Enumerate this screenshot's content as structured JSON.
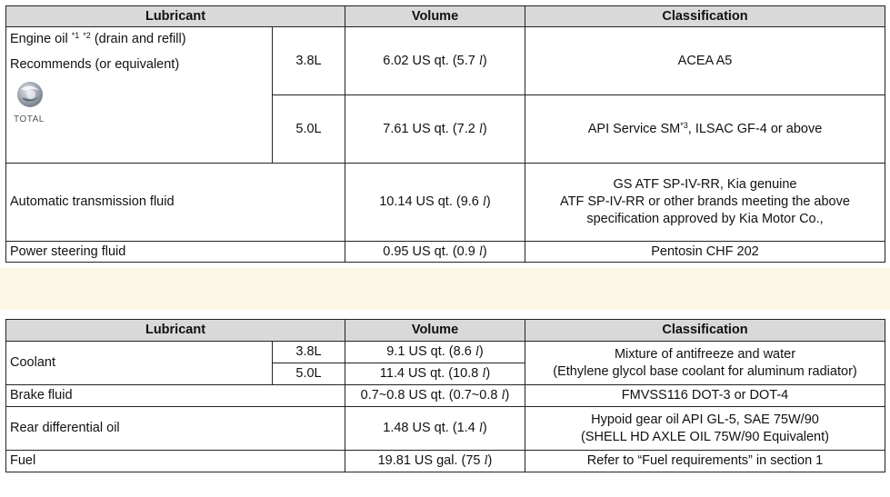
{
  "table1": {
    "headers": {
      "lubricant": "Lubricant",
      "volume": "Volume",
      "classification": "Classification"
    },
    "engine_oil": {
      "label": "Engine oil",
      "sup1": "*1",
      "sup2": "*2",
      "label_suffix": "(drain and refill)",
      "recommends": "Recommends (or equivalent)",
      "brand": "TOTAL",
      "rows": [
        {
          "engine": "3.8L",
          "volume_text": "6.02 US qt. (5.7",
          "classification": "ACEA A5"
        },
        {
          "engine": "5.0L",
          "volume_text": "7.61 US qt. (7.2",
          "classification_main": "API Service SM",
          "classification_sup": "*3",
          "classification_rest": ", ILSAC GF-4 or above"
        }
      ]
    },
    "atf": {
      "label": "Automatic transmission fluid",
      "volume_text": "10.14 US qt. (9.6",
      "classification_lines": [
        "GS ATF SP-IV-RR, Kia genuine",
        "ATF SP-IV-RR or other brands meeting the above",
        "specification approved by Kia Motor Co.,"
      ]
    },
    "power_steering": {
      "label": "Power steering fluid",
      "volume_text": "0.95 US qt. (0.9",
      "classification": "Pentosin CHF 202"
    }
  },
  "table2": {
    "headers": {
      "lubricant": "Lubricant",
      "volume": "Volume",
      "classification": "Classification"
    },
    "coolant": {
      "label": "Coolant",
      "rows": [
        {
          "engine": "3.8L",
          "volume_text": "9.1 US qt. (8.6"
        },
        {
          "engine": "5.0L",
          "volume_text": "11.4 US qt. (10.8"
        }
      ],
      "classification_lines": [
        "Mixture of antifreeze and water",
        "(Ethylene glycol base coolant for aluminum radiator)"
      ]
    },
    "brake": {
      "label": "Brake fluid",
      "volume_text": "0.7~0.8 US qt. (0.7~0.8",
      "classification": "FMVSS116 DOT-3 or DOT-4"
    },
    "rear_diff": {
      "label": "Rear differential oil",
      "volume_text": "1.48 US qt. (1.4",
      "classification_lines": [
        "Hypoid gear oil API GL-5, SAE 75W/90",
        "(SHELL HD AXLE OIL 75W/90 Equivalent)"
      ]
    },
    "fuel": {
      "label": "Fuel",
      "volume_text": "19.81 US gal. (75",
      "classification": "Refer to “Fuel requirements” in section 1"
    }
  },
  "unit_symbol": "l",
  "close_paren": ")",
  "colors": {
    "header_bg": "#d9d9d9",
    "band_bg": "#fdf8e6",
    "logo_blue": "#3b5fa8",
    "logo_red": "#d23a2e"
  }
}
